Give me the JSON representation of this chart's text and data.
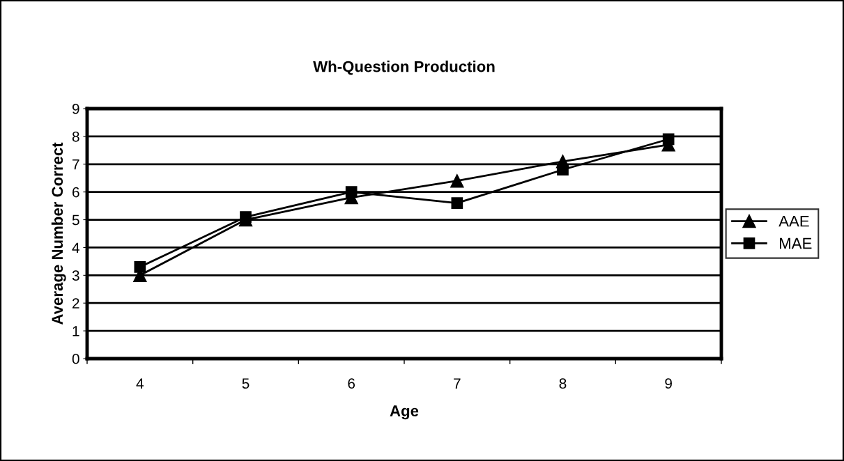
{
  "chart_data": {
    "type": "line",
    "title": "Wh-Question Production",
    "xlabel": "Age",
    "ylabel": "Average Number Correct",
    "categories": [
      "4",
      "5",
      "6",
      "7",
      "8",
      "9"
    ],
    "series": [
      {
        "name": "AAE",
        "color": "#000000",
        "marker": "triangle",
        "values": [
          3.0,
          5.0,
          5.8,
          6.4,
          7.1,
          7.7
        ]
      },
      {
        "name": "MAE",
        "color": "#000000",
        "marker": "square",
        "values": [
          3.3,
          5.1,
          6.0,
          5.6,
          6.8,
          7.9
        ]
      }
    ],
    "ylim": [
      0,
      9
    ],
    "yticks": [
      0,
      1,
      2,
      3,
      4,
      5,
      6,
      7,
      8,
      9
    ],
    "grid": "y",
    "legend": "right",
    "line_style": "solid"
  }
}
